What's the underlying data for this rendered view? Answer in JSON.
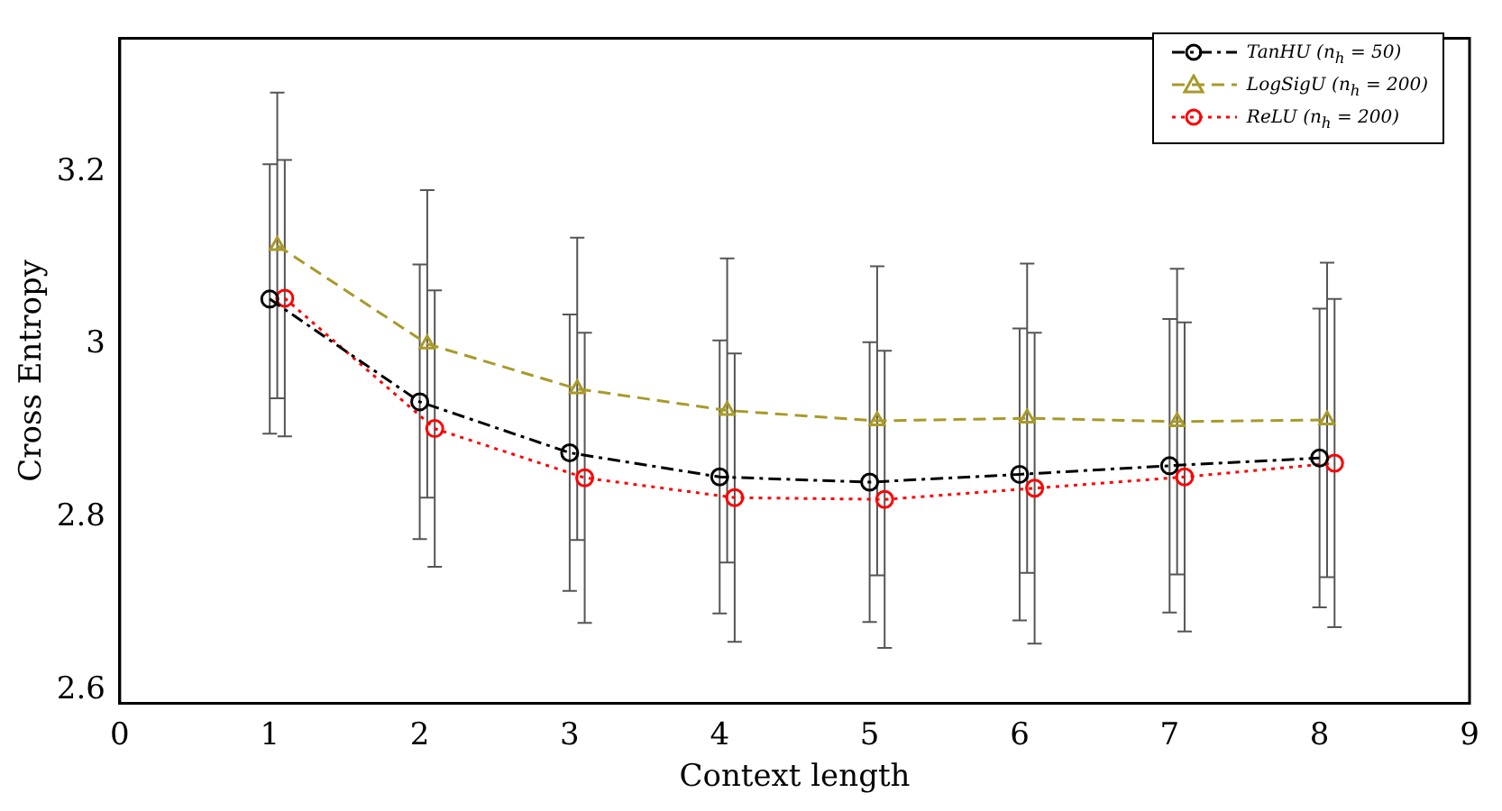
{
  "chart_data": {
    "type": "line",
    "xlabel": "Context length",
    "ylabel": "Cross Entropy",
    "xlim": [
      0,
      9
    ],
    "xticks": [
      0,
      1,
      2,
      3,
      4,
      5,
      6,
      7,
      8,
      9
    ],
    "ylim": [
      2.585,
      3.355
    ],
    "yticks": [
      2.6,
      2.8,
      3,
      3.2
    ],
    "grid": false,
    "legend": "top right",
    "series": [
      {
        "name": "TanHU (n$_{h}$ = 50)",
        "color": "#000000",
        "marker": "circle",
        "line_style": "dashdot",
        "x": [
          1,
          2,
          3,
          4,
          5,
          6,
          7,
          8
        ],
        "values": [
          3.053,
          2.934,
          2.875,
          2.847,
          2.841,
          2.85,
          2.86,
          2.869
        ],
        "errors": [
          0.156,
          0.159,
          0.16,
          0.158,
          0.162,
          0.169,
          0.17,
          0.173
        ]
      },
      {
        "name": "LogSigU (n$_{h}$ = 200)",
        "color": "#a89a2a",
        "marker": "triangle",
        "line_style": "dashed",
        "x": [
          1.05,
          2.05,
          3.05,
          4.05,
          5.05,
          6.05,
          7.05,
          8.05
        ],
        "values": [
          3.115,
          3.001,
          2.949,
          2.924,
          2.912,
          2.915,
          2.911,
          2.913
        ],
        "errors": [
          0.177,
          0.178,
          0.175,
          0.176,
          0.179,
          0.179,
          0.177,
          0.182
        ]
      },
      {
        "name": "ReLU (n$_{h}$ = 200)",
        "color": "#ff0000",
        "marker": "circle",
        "line_style": "dotted",
        "x": [
          1.1,
          2.1,
          3.1,
          4.1,
          5.1,
          6.1,
          7.1,
          8.1
        ],
        "values": [
          3.054,
          2.903,
          2.846,
          2.823,
          2.821,
          2.834,
          2.847,
          2.863
        ],
        "errors": [
          0.16,
          0.16,
          0.168,
          0.167,
          0.172,
          0.18,
          0.179,
          0.19
        ]
      }
    ]
  }
}
